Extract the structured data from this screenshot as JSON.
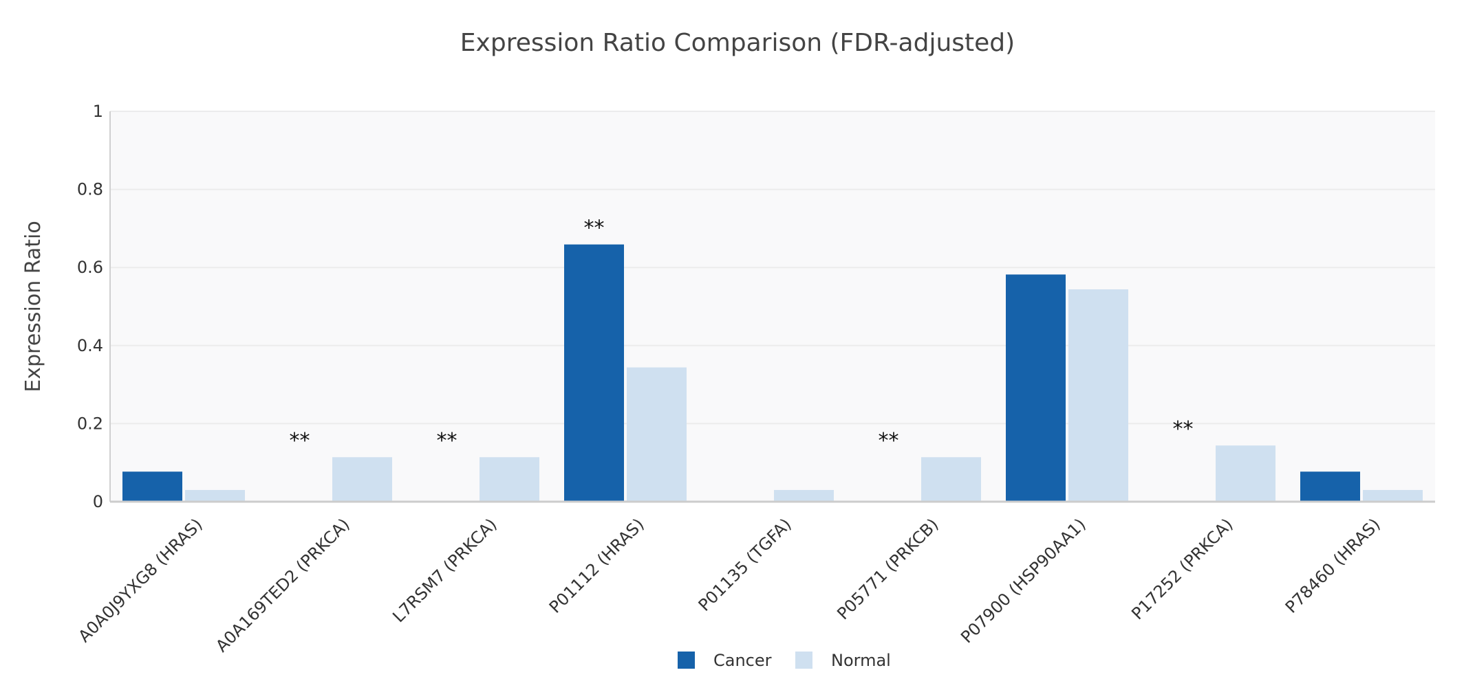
{
  "chart_data": {
    "type": "bar",
    "title": "Expression Ratio Comparison (FDR-adjusted)",
    "xlabel": "",
    "ylabel": "Expression Ratio",
    "ylim": [
      0,
      1
    ],
    "yticks": [
      "0",
      "0.2",
      "0.4",
      "0.6",
      "0.8",
      "1"
    ],
    "ytick_values": [
      0,
      0.2,
      0.4,
      0.6,
      0.8,
      1
    ],
    "grid": true,
    "legend_position": "bottom",
    "categories": [
      "A0A0J9YXG8 (HRAS)",
      "A0A169TED2 (PRKCA)",
      "L7RSM7 (PRKCA)",
      "P01112 (HRAS)",
      "P01135 (TGFA)",
      "P05771 (PRKCB)",
      "P07900 (HSP90AA1)",
      "P17252 (PRKCA)",
      "P78460 (HRAS)"
    ],
    "series": [
      {
        "name": "Cancer",
        "color": "#1662aa",
        "values": [
          0.077,
          0,
          0,
          0.659,
          0,
          0,
          0.582,
          0,
          0.077
        ]
      },
      {
        "name": "Normal",
        "color": "#cfe0f0",
        "values": [
          0.03,
          0.114,
          0.114,
          0.344,
          0.03,
          0.114,
          0.544,
          0.144,
          0.03
        ]
      }
    ],
    "annotations": [
      "",
      "**",
      "**",
      "**",
      "",
      "**",
      "",
      "**",
      ""
    ]
  }
}
